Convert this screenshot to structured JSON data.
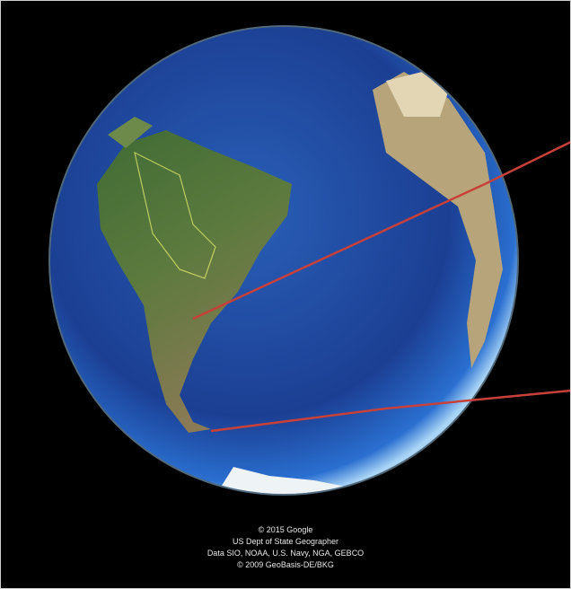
{
  "attribution": [
    "© 2015 Google",
    "US Dept of State Geographer",
    "Data SIO, NOAA, U.S. Navy, NGA, GEBCO",
    "© 2009 GeoBasis-DE/BKG"
  ]
}
